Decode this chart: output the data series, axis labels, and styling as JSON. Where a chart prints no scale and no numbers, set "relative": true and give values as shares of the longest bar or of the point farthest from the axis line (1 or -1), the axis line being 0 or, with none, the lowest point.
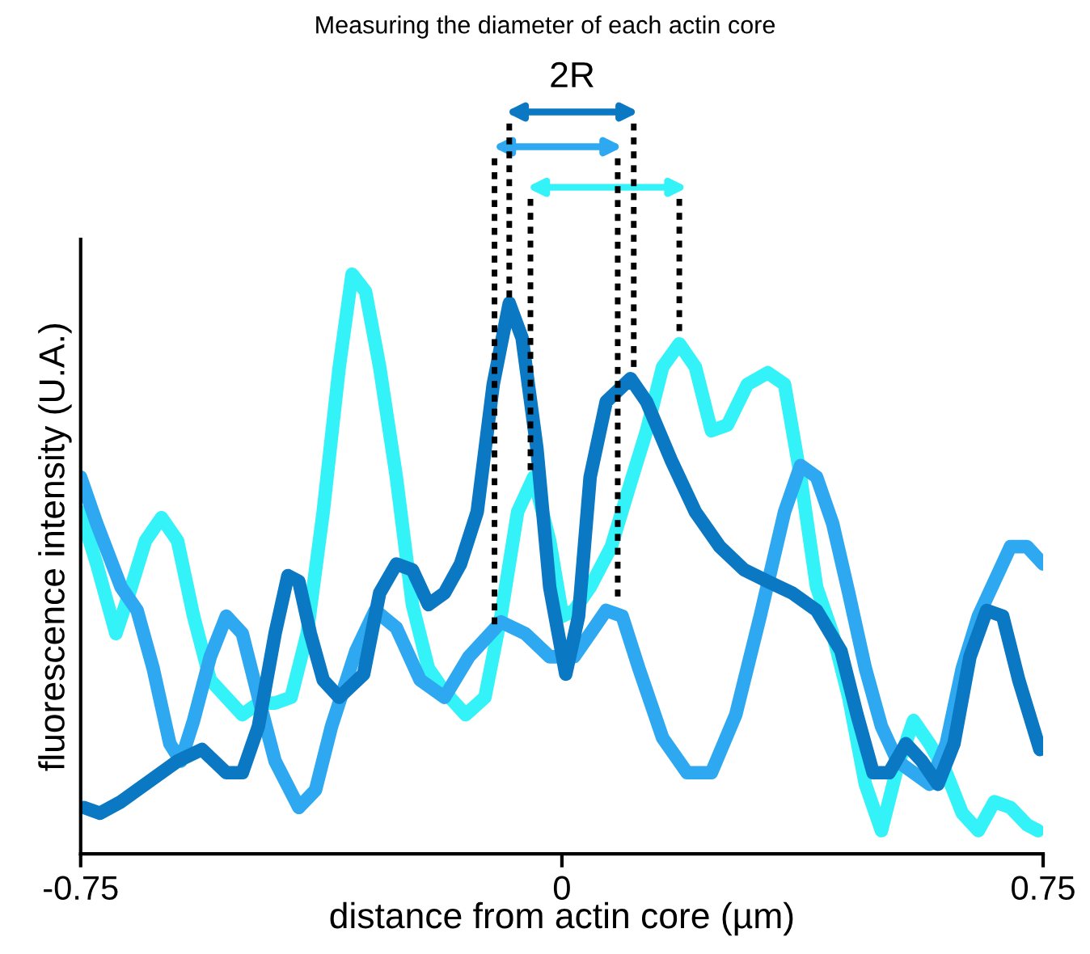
{
  "chart_data": {
    "type": "line",
    "title": "Measuring the diameter of each actin core",
    "xlabel": "distance from actin core (µm)",
    "ylabel": "fluorescence intensity (U.A.)",
    "relative": true,
    "xlim": [
      -0.75,
      0.75
    ],
    "xticks": [
      -0.75,
      0,
      0.75
    ],
    "annotations": [
      "2R"
    ],
    "line_style": "solid",
    "marker": "none",
    "grid": false,
    "series": [
      {
        "color": "#33f3f8",
        "x": [
          -0.75,
          -0.725,
          -0.695,
          -0.674,
          -0.649,
          -0.624,
          -0.599,
          -0.574,
          -0.548,
          -0.523,
          -0.498,
          -0.473,
          -0.447,
          -0.422,
          -0.397,
          -0.372,
          -0.347,
          -0.327,
          -0.306,
          -0.284,
          -0.258,
          -0.233,
          -0.208,
          -0.183,
          -0.15,
          -0.12,
          -0.095,
          -0.069,
          -0.044,
          -0.019,
          0.001,
          0.019,
          0.044,
          0.077,
          0.107,
          0.132,
          0.157,
          0.183,
          0.208,
          0.233,
          0.258,
          0.289,
          0.321,
          0.347,
          0.372,
          0.397,
          0.422,
          0.447,
          0.473,
          0.498,
          0.523,
          0.548,
          0.573,
          0.599,
          0.624,
          0.649,
          0.674,
          0.699,
          0.725,
          0.742
        ],
        "values": [
          0.59,
          0.5,
          0.38,
          0.45,
          0.54,
          0.58,
          0.54,
          0.41,
          0.3,
          0.27,
          0.24,
          0.26,
          0.26,
          0.27,
          0.38,
          0.59,
          0.84,
          1.0,
          0.97,
          0.84,
          0.65,
          0.43,
          0.32,
          0.28,
          0.24,
          0.27,
          0.41,
          0.59,
          0.65,
          0.54,
          0.41,
          0.42,
          0.46,
          0.53,
          0.64,
          0.73,
          0.84,
          0.88,
          0.84,
          0.73,
          0.74,
          0.81,
          0.83,
          0.81,
          0.65,
          0.46,
          0.38,
          0.27,
          0.12,
          0.04,
          0.15,
          0.23,
          0.19,
          0.14,
          0.07,
          0.04,
          0.09,
          0.08,
          0.05,
          0.04
        ]
      },
      {
        "color": "#2ea8f0",
        "x": [
          -0.75,
          -0.725,
          -0.687,
          -0.662,
          -0.637,
          -0.611,
          -0.594,
          -0.574,
          -0.548,
          -0.523,
          -0.498,
          -0.473,
          -0.447,
          -0.41,
          -0.384,
          -0.359,
          -0.321,
          -0.291,
          -0.258,
          -0.221,
          -0.183,
          -0.145,
          -0.095,
          -0.057,
          -0.019,
          0.019,
          0.044,
          0.069,
          0.094,
          0.12,
          0.157,
          0.195,
          0.233,
          0.271,
          0.309,
          0.347,
          0.372,
          0.397,
          0.422,
          0.447,
          0.473,
          0.498,
          0.523,
          0.548,
          0.573,
          0.599,
          0.624,
          0.649,
          0.674,
          0.699,
          0.725,
          0.75
        ],
        "values": [
          0.65,
          0.57,
          0.46,
          0.42,
          0.32,
          0.19,
          0.16,
          0.23,
          0.34,
          0.41,
          0.38,
          0.27,
          0.16,
          0.08,
          0.11,
          0.22,
          0.35,
          0.42,
          0.39,
          0.3,
          0.27,
          0.34,
          0.4,
          0.38,
          0.34,
          0.34,
          0.38,
          0.42,
          0.41,
          0.32,
          0.2,
          0.14,
          0.14,
          0.24,
          0.41,
          0.59,
          0.67,
          0.65,
          0.57,
          0.45,
          0.32,
          0.22,
          0.16,
          0.14,
          0.12,
          0.19,
          0.32,
          0.41,
          0.47,
          0.53,
          0.53,
          0.5
        ]
      },
      {
        "color": "#0b78c4",
        "x": [
          -0.745,
          -0.72,
          -0.687,
          -0.637,
          -0.599,
          -0.561,
          -0.523,
          -0.498,
          -0.473,
          -0.447,
          -0.427,
          -0.41,
          -0.392,
          -0.372,
          -0.347,
          -0.309,
          -0.284,
          -0.258,
          -0.233,
          -0.208,
          -0.183,
          -0.158,
          -0.132,
          -0.107,
          -0.082,
          -0.062,
          -0.039,
          -0.019,
          0.006,
          0.026,
          0.044,
          0.069,
          0.107,
          0.132,
          0.17,
          0.208,
          0.246,
          0.284,
          0.321,
          0.359,
          0.397,
          0.435,
          0.46,
          0.485,
          0.51,
          0.536,
          0.561,
          0.586,
          0.611,
          0.636,
          0.662,
          0.687,
          0.712,
          0.745
        ],
        "values": [
          0.08,
          0.07,
          0.09,
          0.13,
          0.16,
          0.18,
          0.14,
          0.14,
          0.22,
          0.38,
          0.48,
          0.47,
          0.38,
          0.3,
          0.27,
          0.31,
          0.45,
          0.5,
          0.49,
          0.43,
          0.45,
          0.5,
          0.59,
          0.81,
          0.95,
          0.89,
          0.7,
          0.46,
          0.31,
          0.41,
          0.65,
          0.78,
          0.82,
          0.78,
          0.68,
          0.59,
          0.53,
          0.49,
          0.47,
          0.45,
          0.42,
          0.35,
          0.24,
          0.14,
          0.14,
          0.19,
          0.16,
          0.12,
          0.19,
          0.34,
          0.42,
          0.41,
          0.3,
          0.18
        ]
      }
    ]
  }
}
